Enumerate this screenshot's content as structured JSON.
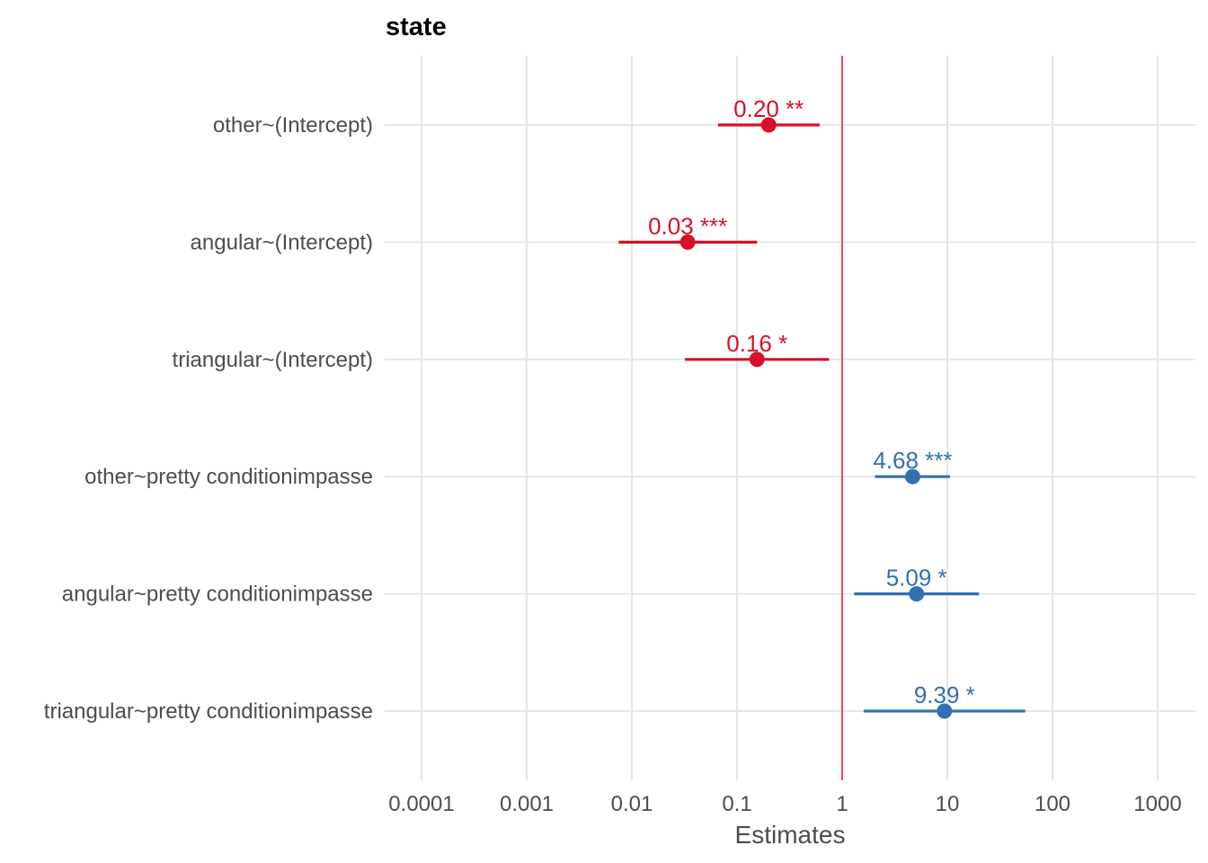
{
  "chart_data": {
    "type": "scatter",
    "subtype": "forest-plot",
    "title": "state",
    "xlabel": "Estimates",
    "x_scale": "log10",
    "xlim": [
      0.0001,
      1000
    ],
    "x_ticks": [
      "0.0001",
      "0.001",
      "0.01",
      "0.1",
      "1",
      "10",
      "100",
      "1000"
    ],
    "reference_line": 1,
    "grid": true,
    "colors": {
      "negative": "#d7102a",
      "positive": "#3370b0",
      "reference": "#e0283c",
      "grid": "#e6e6e6"
    },
    "rows": [
      {
        "term": "other~(Intercept)",
        "estimate": 0.2,
        "ci_low": 0.066,
        "ci_high": 0.61,
        "label": "0.20 **",
        "color": "negative"
      },
      {
        "term": "angular~(Intercept)",
        "estimate": 0.034,
        "ci_low": 0.0075,
        "ci_high": 0.155,
        "label": "0.03 ***",
        "color": "negative"
      },
      {
        "term": "triangular~(Intercept)",
        "estimate": 0.155,
        "ci_low": 0.032,
        "ci_high": 0.75,
        "label": "0.16 *",
        "color": "negative"
      },
      {
        "term": "other~pretty conditionimpasse",
        "estimate": 4.68,
        "ci_low": 2.05,
        "ci_high": 10.6,
        "label": "4.68 ***",
        "color": "positive"
      },
      {
        "term": "angular~pretty conditionimpasse",
        "estimate": 5.09,
        "ci_low": 1.3,
        "ci_high": 20.0,
        "label": "5.09 *",
        "color": "positive"
      },
      {
        "term": "triangular~pretty conditionimpasse",
        "estimate": 9.39,
        "ci_low": 1.6,
        "ci_high": 55.0,
        "label": "9.39 *",
        "color": "positive"
      }
    ]
  }
}
